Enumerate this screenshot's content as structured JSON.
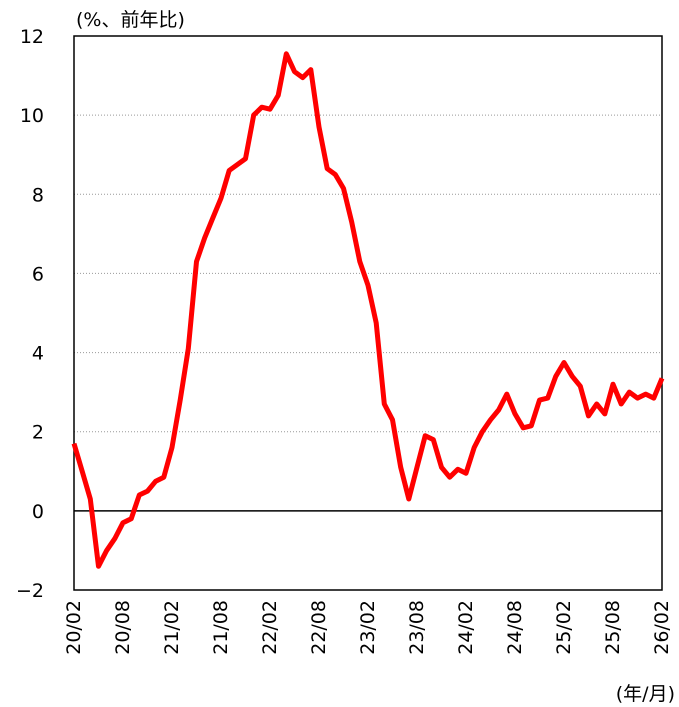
{
  "chart_data": {
    "type": "line",
    "y_label": "(%、前年比)",
    "x_label": "(年/月)",
    "categories": [
      "20/02",
      null,
      null,
      null,
      null,
      null,
      "20/08",
      null,
      null,
      null,
      null,
      null,
      "21/02",
      null,
      null,
      null,
      null,
      null,
      "21/08",
      null,
      null,
      null,
      null,
      null,
      "22/02",
      null,
      null,
      null,
      null,
      null,
      "22/08",
      null,
      null,
      null,
      null,
      null,
      "23/02",
      null,
      null,
      null,
      null,
      null,
      "23/08",
      null,
      null,
      null,
      null,
      null,
      "24/02",
      null,
      null,
      null,
      null,
      null,
      "24/08",
      null,
      null,
      null,
      null,
      null,
      "25/02",
      null,
      null,
      null,
      null,
      null,
      "25/08",
      null,
      null,
      null,
      null,
      null,
      "26/02"
    ],
    "series": [
      {
        "color": "#ff0000",
        "values": [
          1.7,
          1.0,
          0.3,
          -1.4,
          -1.0,
          -0.7,
          -0.3,
          -0.2,
          0.4,
          0.5,
          0.75,
          0.85,
          1.6,
          2.8,
          4.1,
          6.3,
          6.9,
          7.4,
          7.9,
          8.6,
          8.75,
          8.9,
          10.0,
          10.2,
          10.15,
          10.5,
          11.55,
          11.1,
          10.95,
          11.15,
          9.7,
          8.65,
          8.5,
          8.15,
          7.3,
          6.3,
          5.7,
          4.75,
          2.7,
          2.3,
          1.1,
          0.3,
          1.1,
          1.9,
          1.8,
          1.1,
          0.85,
          1.05,
          0.95,
          1.6,
          2.0,
          2.3,
          2.55,
          2.95,
          2.45,
          2.1,
          2.15,
          2.8,
          2.85,
          3.4,
          3.75,
          3.4,
          3.15,
          2.4,
          2.7,
          2.45,
          3.2,
          2.7,
          3.0,
          2.85,
          2.95,
          2.85,
          3.35
        ]
      }
    ],
    "ylim": [
      -2,
      12
    ],
    "yticks": [
      {
        "value": -2,
        "label": "−2"
      },
      0,
      2,
      4,
      6,
      8,
      10,
      12
    ],
    "grid": true
  }
}
